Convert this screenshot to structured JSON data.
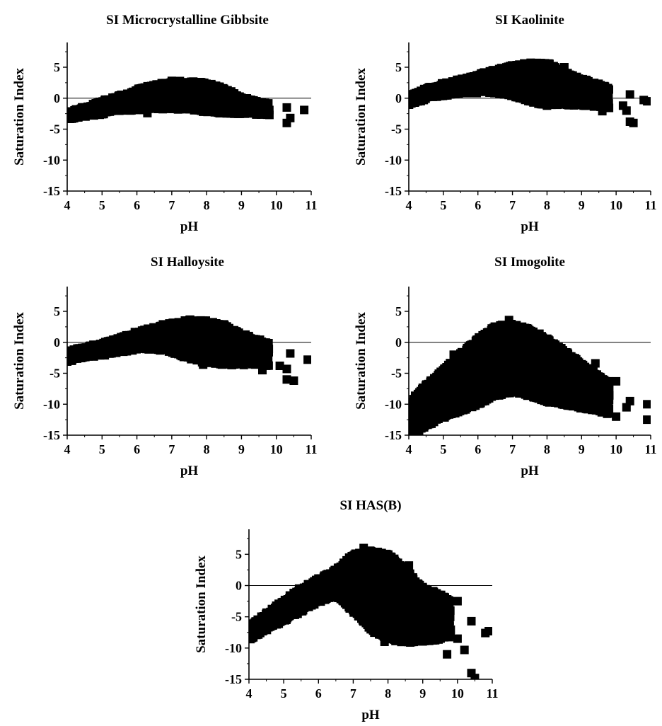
{
  "figure": {
    "background": "#ffffff",
    "marker_color": "#000000"
  },
  "chart_data": [
    {
      "type": "scatter",
      "title": "SI Microcrystalline Gibbsite",
      "xlabel": "pH",
      "ylabel": "Saturation Index",
      "xlim": [
        4,
        11
      ],
      "ylim": [
        -15,
        9
      ],
      "xticks": [
        4,
        5,
        6,
        7,
        8,
        9,
        10,
        11
      ],
      "yticks": [
        5,
        0,
        -5,
        -10,
        -15
      ],
      "reference_line_y": 0,
      "band": [
        [
          4.0,
          -3.3,
          -2.4
        ],
        [
          4.5,
          -2.8,
          -1.5
        ],
        [
          5.0,
          -2.5,
          -0.6
        ],
        [
          5.5,
          -2.0,
          0.3
        ],
        [
          6.0,
          -1.8,
          1.3
        ],
        [
          6.5,
          -1.6,
          2.0
        ],
        [
          7.0,
          -1.6,
          2.6
        ],
        [
          7.5,
          -1.8,
          2.6
        ],
        [
          8.0,
          -2.1,
          2.4
        ],
        [
          8.5,
          -2.3,
          1.5
        ],
        [
          9.0,
          -2.4,
          0.1
        ],
        [
          9.5,
          -2.5,
          -0.7
        ],
        [
          9.8,
          -2.6,
          -1.0
        ]
      ],
      "outliers": [
        [
          6.3,
          -2.4
        ],
        [
          10.3,
          -4.0
        ],
        [
          10.4,
          -3.2
        ],
        [
          10.3,
          -1.5
        ],
        [
          10.8,
          -1.9
        ],
        [
          9.6,
          -2.6
        ],
        [
          7.0,
          2.8
        ]
      ]
    },
    {
      "type": "scatter",
      "title": "SI Kaolinite",
      "xlabel": "pH",
      "ylabel": "Saturation Index",
      "xlim": [
        4,
        11
      ],
      "ylim": [
        -15,
        9
      ],
      "xticks": [
        4,
        5,
        6,
        7,
        8,
        9,
        10,
        11
      ],
      "yticks": [
        5,
        0,
        -5,
        -10,
        -15
      ],
      "reference_line_y": 0,
      "band": [
        [
          4.0,
          -1.0,
          0.3
        ],
        [
          4.5,
          0.0,
          1.5
        ],
        [
          5.0,
          0.5,
          2.3
        ],
        [
          5.5,
          1.0,
          3.0
        ],
        [
          6.0,
          1.0,
          3.7
        ],
        [
          6.5,
          1.0,
          4.5
        ],
        [
          7.0,
          0.5,
          5.2
        ],
        [
          7.5,
          -0.5,
          5.6
        ],
        [
          8.0,
          -1.0,
          5.6
        ],
        [
          8.5,
          -1.0,
          4.2
        ],
        [
          9.0,
          -1.0,
          3.0
        ],
        [
          9.5,
          -1.3,
          2.2
        ],
        [
          9.8,
          -1.5,
          1.5
        ]
      ],
      "outliers": [
        [
          8.0,
          -1.2
        ],
        [
          8.5,
          5.0
        ],
        [
          9.6,
          -2.1
        ],
        [
          10.2,
          -1.2
        ],
        [
          10.3,
          -2.0
        ],
        [
          10.4,
          0.6
        ],
        [
          10.4,
          -3.8
        ],
        [
          10.5,
          -4.0
        ],
        [
          10.9,
          -0.5
        ],
        [
          10.8,
          -0.3
        ]
      ]
    },
    {
      "type": "scatter",
      "title": "SI Halloysite",
      "xlabel": "pH",
      "ylabel": "Saturation Index",
      "xlim": [
        4,
        11
      ],
      "ylim": [
        -15,
        9
      ],
      "xticks": [
        4,
        5,
        6,
        7,
        8,
        9,
        10,
        11
      ],
      "yticks": [
        5,
        0,
        -5,
        -10,
        -15
      ],
      "reference_line_y": 0,
      "band": [
        [
          4.0,
          -3.0,
          -1.7
        ],
        [
          4.5,
          -2.3,
          -0.8
        ],
        [
          5.0,
          -2.0,
          -0.2
        ],
        [
          5.5,
          -1.5,
          0.6
        ],
        [
          6.0,
          -1.0,
          1.6
        ],
        [
          6.5,
          -1.0,
          2.4
        ],
        [
          7.0,
          -1.5,
          3.0
        ],
        [
          7.5,
          -2.5,
          3.5
        ],
        [
          8.0,
          -3.2,
          3.4
        ],
        [
          8.5,
          -3.5,
          2.6
        ],
        [
          9.0,
          -3.5,
          1.3
        ],
        [
          9.5,
          -3.5,
          0.3
        ],
        [
          9.8,
          -3.8,
          -0.3
        ]
      ],
      "outliers": [
        [
          7.9,
          -3.6
        ],
        [
          9.6,
          -4.5
        ],
        [
          10.1,
          -3.8
        ],
        [
          10.3,
          -4.3
        ],
        [
          10.3,
          -6.0
        ],
        [
          10.5,
          -6.2
        ],
        [
          10.4,
          -1.8
        ],
        [
          10.9,
          -2.8
        ],
        [
          8.5,
          2.9
        ]
      ]
    },
    {
      "type": "scatter",
      "title": "SI Imogolite",
      "xlabel": "pH",
      "ylabel": "Saturation Index",
      "xlim": [
        4,
        11
      ],
      "ylim": [
        -15,
        9
      ],
      "xticks": [
        4,
        5,
        6,
        7,
        8,
        9,
        10,
        11
      ],
      "yticks": [
        5,
        0,
        -5,
        -10,
        -15
      ],
      "reference_line_y": 0,
      "band": [
        [
          4.0,
          -15.0,
          -10.0
        ],
        [
          4.5,
          -13.5,
          -7.0
        ],
        [
          5.0,
          -12.0,
          -4.5
        ],
        [
          5.5,
          -11.0,
          -2.0
        ],
        [
          6.0,
          -10.0,
          0.5
        ],
        [
          6.5,
          -8.5,
          2.5
        ],
        [
          7.0,
          -8.0,
          2.8
        ],
        [
          7.5,
          -8.5,
          2.0
        ],
        [
          8.0,
          -9.5,
          0.5
        ],
        [
          8.5,
          -10.0,
          -1.5
        ],
        [
          9.0,
          -10.5,
          -3.5
        ],
        [
          9.5,
          -11.0,
          -5.5
        ],
        [
          9.8,
          -11.5,
          -6.5
        ]
      ],
      "outliers": [
        [
          5.3,
          -2.0
        ],
        [
          6.9,
          3.6
        ],
        [
          7.2,
          2.4
        ],
        [
          9.4,
          -3.4
        ],
        [
          10.0,
          -6.3
        ],
        [
          10.0,
          -12.0
        ],
        [
          10.3,
          -10.5
        ],
        [
          10.4,
          -9.5
        ],
        [
          10.9,
          -10.0
        ],
        [
          10.9,
          -12.5
        ],
        [
          4.2,
          -14.5
        ]
      ]
    },
    {
      "type": "scatter",
      "title": "SI HAS(B)",
      "xlabel": "pH",
      "ylabel": "Saturation Index",
      "xlim": [
        4,
        11
      ],
      "ylim": [
        -15,
        9
      ],
      "xticks": [
        4,
        5,
        6,
        7,
        8,
        9,
        10,
        11
      ],
      "yticks": [
        5,
        0,
        -5,
        -10,
        -15
      ],
      "reference_line_y": 0,
      "band": [
        [
          4.0,
          -8.5,
          -6.5
        ],
        [
          4.5,
          -7.0,
          -4.5
        ],
        [
          5.0,
          -5.5,
          -2.5
        ],
        [
          5.5,
          -4.0,
          -0.5
        ],
        [
          6.0,
          -2.5,
          1.0
        ],
        [
          6.5,
          -1.5,
          2.5
        ],
        [
          7.0,
          -4.0,
          4.8
        ],
        [
          7.5,
          -7.0,
          5.5
        ],
        [
          8.0,
          -8.5,
          5.0
        ],
        [
          8.5,
          -9.0,
          2.5
        ],
        [
          9.0,
          -9.0,
          -0.5
        ],
        [
          9.5,
          -8.5,
          -1.5
        ],
        [
          9.8,
          -8.0,
          -2.5
        ]
      ],
      "outliers": [
        [
          7.3,
          6.0
        ],
        [
          7.9,
          -9.0
        ],
        [
          8.6,
          3.2
        ],
        [
          9.7,
          -11.0
        ],
        [
          10.0,
          -8.5
        ],
        [
          10.2,
          -10.3
        ],
        [
          10.4,
          -5.7
        ],
        [
          10.4,
          -14.0
        ],
        [
          10.5,
          -14.8
        ],
        [
          10.8,
          -7.6
        ],
        [
          10.9,
          -7.3
        ],
        [
          10.0,
          -2.5
        ]
      ]
    }
  ]
}
